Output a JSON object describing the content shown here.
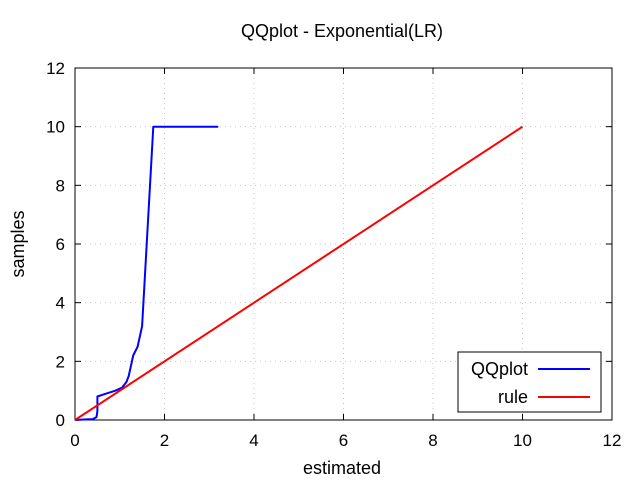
{
  "chart_data": {
    "type": "line",
    "title": "QQplot - Exponential(LR)",
    "xlabel": "estimated",
    "ylabel": "samples",
    "xlim": [
      0,
      12
    ],
    "ylim": [
      0,
      12
    ],
    "xticks": [
      0,
      2,
      4,
      6,
      8,
      10,
      12
    ],
    "yticks": [
      0,
      2,
      4,
      6,
      8,
      10,
      12
    ],
    "grid": true,
    "legend": "bottom-right",
    "series": [
      {
        "name": "QQplot",
        "color": "#0000ff",
        "x": [
          0,
          0.1,
          0.25,
          0.4,
          0.48,
          0.5,
          0.5,
          0.7,
          0.9,
          1.05,
          1.15,
          1.2,
          1.3,
          1.4,
          1.5,
          1.75,
          3.2
        ],
        "y": [
          0,
          0.01,
          0.02,
          0.03,
          0.1,
          0.3,
          0.8,
          0.9,
          1.0,
          1.1,
          1.3,
          1.5,
          2.2,
          2.5,
          3.2,
          10.0,
          10.0
        ]
      },
      {
        "name": "rule",
        "color": "#ff0000",
        "x": [
          0,
          10
        ],
        "y": [
          0,
          10
        ]
      }
    ]
  }
}
